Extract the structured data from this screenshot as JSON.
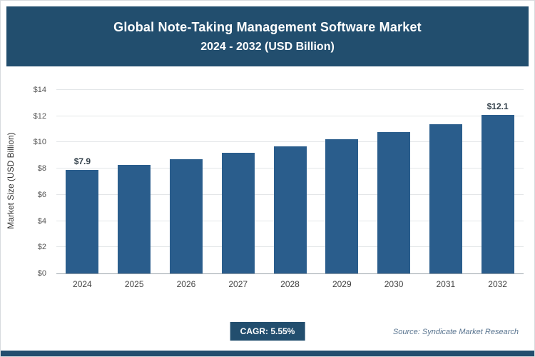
{
  "header": {
    "title": "Global Note-Taking Management Software Market",
    "subtitle": "2024 - 2032 (USD Billion)"
  },
  "chart_data": {
    "type": "bar",
    "categories": [
      "2024",
      "2025",
      "2026",
      "2027",
      "2028",
      "2029",
      "2030",
      "2031",
      "2032"
    ],
    "values": [
      7.9,
      8.3,
      8.7,
      9.2,
      9.7,
      10.25,
      10.8,
      11.4,
      12.1
    ],
    "bar_labels": [
      "$7.9",
      "",
      "",
      "",
      "",
      "",
      "",
      "",
      "$12.1"
    ],
    "title": "Global Note-Taking Management Software Market 2024 - 2032 (USD Billion)",
    "xlabel": "",
    "ylabel": "Market Size (USD Billion)",
    "ylim": [
      0,
      14
    ],
    "yticks": [
      "$0",
      "$2",
      "$4",
      "$6",
      "$8",
      "$10",
      "$12",
      "$14"
    ],
    "grid": true,
    "legend": "none"
  },
  "footer": {
    "cagr_label": "CAGR: 5.55%",
    "source": "Source: Syndicate Market Research"
  },
  "colors": {
    "header_bg": "#224e6e",
    "bar": "#2a5d8c",
    "badge_bg": "#224e6e",
    "strip_bg": "#224e6e"
  }
}
